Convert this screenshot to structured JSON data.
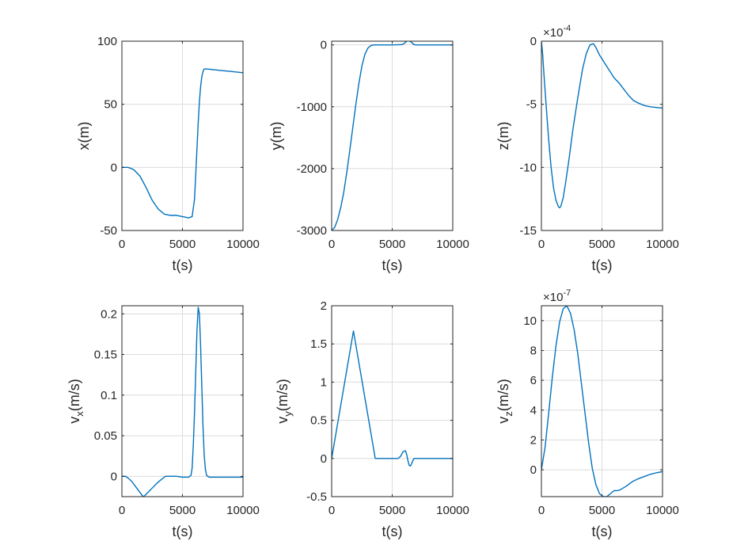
{
  "figure": {
    "background": "#ffffff",
    "line_color": "#0072bd",
    "grid_color": "#dcdcdc",
    "axes_color": "#262626"
  },
  "chart_data": [
    {
      "type": "line",
      "xlabel": "t(s)",
      "ylabel_main": "x(m)",
      "ylabel_sub": "",
      "exponent": null,
      "xlim": [
        0,
        10000
      ],
      "ylim": [
        -50,
        100
      ],
      "xticks": [
        0,
        5000,
        10000
      ],
      "xtick_labels": [
        "0",
        "5000",
        "10000"
      ],
      "yticks": [
        -50,
        0,
        50,
        100
      ],
      "ytick_labels": [
        "-50",
        "0",
        "50",
        "100"
      ],
      "grid": true,
      "series": [
        {
          "x": [
            0,
            500,
            800,
            1000,
            1500,
            2000,
            2500,
            3000,
            3500,
            4000,
            4500,
            5000,
            5500,
            5800,
            6000,
            6100,
            6200,
            6300,
            6400,
            6500,
            6600,
            6700,
            6800,
            7000,
            8000,
            9000,
            10000
          ],
          "y": [
            0,
            0,
            -1,
            -2,
            -7,
            -16,
            -26,
            -33,
            -37,
            -38,
            -38,
            -39,
            -40,
            -39,
            -25,
            -5,
            15,
            35,
            52,
            64,
            72,
            76,
            78,
            78,
            77,
            76,
            75
          ]
        }
      ]
    },
    {
      "type": "line",
      "xlabel": "t(s)",
      "ylabel_main": "y(m)",
      "ylabel_sub": "",
      "exponent": null,
      "xlim": [
        0,
        10000
      ],
      "ylim": [
        -3000,
        60
      ],
      "xticks": [
        0,
        5000,
        10000
      ],
      "xtick_labels": [
        "0",
        "5000",
        "10000"
      ],
      "yticks": [
        -3000,
        -2000,
        -1000,
        0
      ],
      "ytick_labels": [
        "-3000",
        "-2000",
        "-1000",
        "0"
      ],
      "grid": true,
      "series": [
        {
          "x": [
            0,
            250,
            500,
            750,
            1000,
            1250,
            1500,
            1750,
            2000,
            2250,
            2500,
            2750,
            3000,
            3250,
            3500,
            3700,
            4000,
            5000,
            5800,
            6000,
            6200,
            6400,
            6600,
            6800,
            7000,
            8000,
            10000
          ],
          "y": [
            -3000,
            -2950,
            -2820,
            -2630,
            -2380,
            -2060,
            -1700,
            -1330,
            -960,
            -620,
            -340,
            -150,
            -50,
            -10,
            0,
            0,
            0,
            0,
            5,
            25,
            60,
            70,
            40,
            5,
            0,
            0,
            0
          ]
        }
      ]
    },
    {
      "type": "line",
      "xlabel": "t(s)",
      "ylabel_main": "z(m)",
      "ylabel_sub": "",
      "exponent": "-4",
      "xlim": [
        0,
        10000
      ],
      "ylim": [
        -15,
        0
      ],
      "xticks": [
        0,
        5000,
        10000
      ],
      "xtick_labels": [
        "0",
        "5000",
        "10000"
      ],
      "yticks": [
        -15,
        -10,
        -5,
        0
      ],
      "ytick_labels": [
        "-15",
        "-10",
        "-5",
        "0"
      ],
      "grid": true,
      "series": [
        {
          "x": [
            0,
            100,
            200,
            400,
            600,
            800,
            1000,
            1200,
            1400,
            1500,
            1600,
            1800,
            2000,
            2300,
            2600,
            3000,
            3400,
            3700,
            4000,
            4300,
            4500,
            4800,
            5200,
            5600,
            6000,
            6400,
            6800,
            7200,
            7600,
            8000,
            8500,
            9000,
            9500,
            10000
          ],
          "y": [
            0,
            -1,
            -2.5,
            -5.2,
            -7.8,
            -10,
            -11.6,
            -12.6,
            -13.1,
            -13.2,
            -13.1,
            -12.4,
            -11.2,
            -9.2,
            -7,
            -4.5,
            -2.2,
            -1,
            -0.3,
            -0.2,
            -0.5,
            -1.1,
            -1.7,
            -2.3,
            -2.9,
            -3.3,
            -3.8,
            -4.3,
            -4.7,
            -4.9,
            -5.1,
            -5.2,
            -5.25,
            -5.3
          ]
        }
      ]
    },
    {
      "type": "line",
      "xlabel": "t(s)",
      "ylabel_main": "v",
      "ylabel_sub": "x",
      "ylabel_tail": "(m/s)",
      "exponent": null,
      "xlim": [
        0,
        10000
      ],
      "ylim": [
        -0.025,
        0.21
      ],
      "xticks": [
        0,
        5000,
        10000
      ],
      "xtick_labels": [
        "0",
        "5000",
        "10000"
      ],
      "yticks": [
        0,
        0.05,
        0.1,
        0.15,
        0.2
      ],
      "ytick_labels": [
        "0",
        "0.05",
        "0.1",
        "0.15",
        "0.2"
      ],
      "grid": true,
      "series": [
        {
          "x": [
            0,
            300,
            500,
            800,
            1100,
            1400,
            1700,
            1800,
            2200,
            2600,
            3000,
            3500,
            3600,
            4500,
            5000,
            5500,
            5700,
            5800,
            5900,
            6000,
            6100,
            6200,
            6300,
            6400,
            6500,
            6600,
            6700,
            6800,
            6900,
            7000,
            7200,
            8000,
            10000
          ],
          "y": [
            0,
            0,
            -0.002,
            -0.006,
            -0.012,
            -0.018,
            -0.024,
            -0.025,
            -0.019,
            -0.013,
            -0.007,
            -0.001,
            0,
            0,
            -0.001,
            -0.001,
            0.001,
            0.01,
            0.04,
            0.08,
            0.13,
            0.18,
            0.208,
            0.2,
            0.16,
            0.11,
            0.06,
            0.025,
            0.008,
            0.001,
            -0.001,
            -0.001,
            -0.001
          ]
        }
      ]
    },
    {
      "type": "line",
      "xlabel": "t(s)",
      "ylabel_main": "v",
      "ylabel_sub": "y",
      "ylabel_tail": "(m/s)",
      "exponent": null,
      "xlim": [
        0,
        10000
      ],
      "ylim": [
        -0.5,
        2
      ],
      "xticks": [
        0,
        5000,
        10000
      ],
      "xtick_labels": [
        "0",
        "5000",
        "10000"
      ],
      "yticks": [
        -0.5,
        0,
        0.5,
        1,
        1.5,
        2
      ],
      "ytick_labels": [
        "-0.5",
        "0",
        "0.5",
        "1",
        "1.5",
        "2"
      ],
      "grid": true,
      "series": [
        {
          "x": [
            0,
            1800,
            3600,
            5500,
            5700,
            5900,
            6100,
            6200,
            6300,
            6400,
            6500,
            6600,
            6700,
            6800,
            7000,
            10000
          ],
          "y": [
            0,
            1.67,
            0,
            0,
            0.03,
            0.09,
            0.1,
            0.05,
            -0.03,
            -0.09,
            -0.1,
            -0.07,
            -0.03,
            0,
            0,
            0
          ]
        }
      ]
    },
    {
      "type": "line",
      "xlabel": "t(s)",
      "ylabel_main": "v",
      "ylabel_sub": "z",
      "ylabel_tail": "(m/s)",
      "exponent": "-7",
      "xlim": [
        0,
        10000
      ],
      "ylim": [
        -1.8,
        11
      ],
      "xticks": [
        0,
        5000,
        10000
      ],
      "xtick_labels": [
        "0",
        "5000",
        "10000"
      ],
      "yticks": [
        0,
        2,
        4,
        6,
        8,
        10
      ],
      "ytick_labels": [
        "0",
        "2",
        "4",
        "6",
        "8",
        "10"
      ],
      "grid": true,
      "series": [
        {
          "x": [
            0,
            300,
            600,
            900,
            1200,
            1500,
            1800,
            2100,
            2400,
            2700,
            3000,
            3300,
            3600,
            3900,
            4200,
            4500,
            4800,
            5100,
            5400,
            5700,
            6000,
            6300,
            6600,
            7000,
            7500,
            8000,
            8500,
            9000,
            9500,
            10000
          ],
          "y": [
            0,
            1.5,
            3.8,
            6.2,
            8.3,
            9.9,
            10.8,
            11,
            10.5,
            9.4,
            7.8,
            5.8,
            3.8,
            1.8,
            0.1,
            -1.0,
            -1.6,
            -1.8,
            -1.8,
            -1.6,
            -1.4,
            -1.4,
            -1.3,
            -1.1,
            -0.8,
            -0.6,
            -0.45,
            -0.3,
            -0.2,
            -0.12
          ]
        }
      ]
    }
  ]
}
